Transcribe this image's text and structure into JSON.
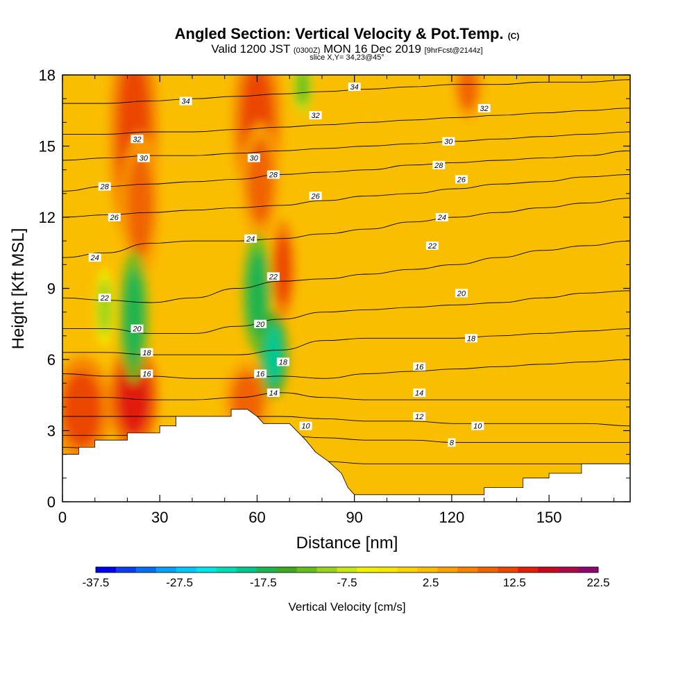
{
  "header": {
    "title_main": "Angled Section: Vertical Velocity & Pot.Temp.",
    "title_unit": "(C)",
    "sub_a": "Valid 1200 JST",
    "sub_b": "(0300Z)",
    "sub_c": "MON 16 Dec 2019",
    "sub_d": "[9hrFcst@2144z]",
    "slice": "slice X,Y= 34,23@45°"
  },
  "chart_data": {
    "type": "heatmap",
    "xlabel": "Distance [nm]",
    "ylabel": "Height [Kft MSL]",
    "xlim": [
      0,
      175
    ],
    "ylim": [
      0,
      18
    ],
    "xticks": [
      0,
      30,
      60,
      90,
      120,
      150
    ],
    "yticks": [
      0,
      3,
      6,
      9,
      12,
      15,
      18
    ],
    "colorbar": {
      "label": "Vertical Velocity [cm/s]",
      "min": -37.5,
      "max": 22.5,
      "step": 2.5,
      "tick_labels": [
        "-37.5",
        "-27.5",
        "-17.5",
        "-7.5",
        "2.5",
        "12.5",
        "22.5"
      ],
      "colors": [
        "#0000ee",
        "#0a3cf0",
        "#0a6ef2",
        "#0aa0f5",
        "#00c8f8",
        "#00e6e6",
        "#00dcb4",
        "#00c88c",
        "#1eb450",
        "#3caa1e",
        "#64be1e",
        "#96d21e",
        "#c8e614",
        "#f0f000",
        "#fae600",
        "#fad200",
        "#fabe00",
        "#faa000",
        "#f58200",
        "#f06400",
        "#eb4600",
        "#e11e0a",
        "#c80a1e",
        "#aa0a46",
        "#8c0a6e"
      ]
    },
    "terrain": [
      [
        0,
        2.0
      ],
      [
        5,
        2.0
      ],
      [
        5,
        2.3
      ],
      [
        10,
        2.3
      ],
      [
        10,
        2.6
      ],
      [
        20,
        2.6
      ],
      [
        20,
        2.9
      ],
      [
        30,
        2.9
      ],
      [
        30,
        3.2
      ],
      [
        35,
        3.2
      ],
      [
        35,
        3.6
      ],
      [
        52,
        3.6
      ],
      [
        52,
        3.9
      ],
      [
        57,
        3.9
      ],
      [
        60,
        3.6
      ],
      [
        62,
        3.3
      ],
      [
        70,
        3.3
      ],
      [
        75,
        2.6
      ],
      [
        78,
        2.1
      ],
      [
        82,
        1.7
      ],
      [
        86,
        1.2
      ],
      [
        88,
        0.6
      ],
      [
        90,
        0.3
      ],
      [
        130,
        0.3
      ],
      [
        130,
        0.6
      ],
      [
        142,
        0.6
      ],
      [
        142,
        1.0
      ],
      [
        150,
        1.0
      ],
      [
        150,
        1.2
      ],
      [
        160,
        1.2
      ],
      [
        160,
        1.6
      ],
      [
        175,
        1.6
      ]
    ],
    "theta_lines": [
      {
        "label": "8",
        "y": [
          2.3,
          2.2,
          2.1,
          2.0,
          1.9,
          1.8,
          1.7,
          1.6,
          1.6,
          1.6,
          1.6,
          1.6,
          1.6,
          1.6
        ]
      },
      {
        "label": "10",
        "y": [
          2.8,
          2.8,
          2.8,
          2.8,
          2.8,
          2.8,
          2.7,
          2.6,
          2.6,
          2.5,
          2.5,
          2.5,
          2.5,
          2.5
        ]
      },
      {
        "label": "12",
        "y": [
          3.6,
          3.6,
          3.6,
          3.6,
          3.6,
          3.6,
          3.5,
          3.4,
          3.4,
          3.3,
          3.3,
          3.3,
          3.3,
          3.2
        ]
      },
      {
        "label": "14",
        "y": [
          4.4,
          4.4,
          4.3,
          4.3,
          4.4,
          4.6,
          4.4,
          4.3,
          4.3,
          4.3,
          4.3,
          4.3,
          4.3,
          4.3
        ]
      },
      {
        "label": "16",
        "y": [
          5.4,
          5.3,
          5.3,
          5.2,
          5.2,
          5.3,
          5.2,
          5.4,
          5.5,
          5.6,
          5.7,
          5.8,
          5.9,
          6.0
        ]
      },
      {
        "label": "18",
        "y": [
          6.3,
          6.3,
          6.2,
          6.2,
          6.2,
          6.4,
          6.8,
          6.9,
          6.9,
          6.9,
          7.0,
          7.1,
          7.2,
          7.3
        ]
      },
      {
        "label": "20",
        "y": [
          7.3,
          7.3,
          7.1,
          7.1,
          7.4,
          7.7,
          8.0,
          8.1,
          8.2,
          8.3,
          8.4,
          8.6,
          8.8,
          8.9
        ]
      },
      {
        "label": "22",
        "y": [
          8.6,
          8.5,
          8.4,
          8.6,
          9.0,
          9.3,
          9.4,
          9.6,
          9.8,
          10.0,
          10.3,
          10.6,
          10.8,
          11.0
        ]
      },
      {
        "label": "24",
        "y": [
          10.3,
          10.5,
          10.9,
          11.0,
          11.0,
          11.1,
          11.3,
          11.5,
          11.8,
          12.0,
          12.2,
          12.4,
          12.6,
          12.8
        ]
      },
      {
        "label": "26",
        "y": [
          12.0,
          12.1,
          12.2,
          12.3,
          12.4,
          12.5,
          12.7,
          12.9,
          13.0,
          13.2,
          13.4,
          13.5,
          13.7,
          13.8
        ]
      },
      {
        "label": "28",
        "y": [
          13.1,
          13.3,
          13.4,
          13.5,
          13.6,
          13.8,
          13.9,
          14.0,
          14.2,
          14.3,
          14.4,
          14.5,
          14.6,
          14.8
        ]
      },
      {
        "label": "30",
        "y": [
          14.4,
          14.5,
          14.6,
          14.6,
          14.7,
          14.8,
          14.9,
          15.0,
          15.1,
          15.2,
          15.3,
          15.4,
          15.5,
          15.6
        ]
      },
      {
        "label": "32",
        "y": [
          15.5,
          15.5,
          15.6,
          15.6,
          15.7,
          15.8,
          15.9,
          16.0,
          16.1,
          16.2,
          16.3,
          16.4,
          16.5,
          16.6
        ]
      },
      {
        "label": "34",
        "y": [
          16.8,
          16.8,
          16.9,
          17.0,
          17.1,
          17.2,
          17.3,
          17.4,
          17.5,
          17.6,
          17.6,
          17.7,
          17.7,
          17.8
        ]
      }
    ],
    "extra_theta_labels": [
      {
        "label": "34",
        "x": 38,
        "y": 16.9
      },
      {
        "label": "32",
        "x": 23,
        "y": 15.3
      },
      {
        "label": "30",
        "x": 25,
        "y": 14.5
      },
      {
        "label": "28",
        "x": 13,
        "y": 13.3
      },
      {
        "label": "26",
        "x": 16,
        "y": 12.0
      },
      {
        "label": "24",
        "x": 10,
        "y": 10.3
      },
      {
        "label": "22",
        "x": 13,
        "y": 8.6
      },
      {
        "label": "20",
        "x": 23,
        "y": 7.3
      },
      {
        "label": "18",
        "x": 26,
        "y": 6.3
      },
      {
        "label": "16",
        "x": 26,
        "y": 5.4
      },
      {
        "label": "30",
        "x": 59,
        "y": 14.5
      },
      {
        "label": "28",
        "x": 65,
        "y": 13.8
      },
      {
        "label": "24",
        "x": 58,
        "y": 11.1
      },
      {
        "label": "22",
        "x": 65,
        "y": 9.5
      },
      {
        "label": "20",
        "x": 61,
        "y": 7.5
      },
      {
        "label": "18",
        "x": 68,
        "y": 5.9
      },
      {
        "label": "16",
        "x": 61,
        "y": 5.4
      },
      {
        "label": "14",
        "x": 65,
        "y": 4.6
      },
      {
        "label": "10",
        "x": 75,
        "y": 3.2
      },
      {
        "label": "34",
        "x": 90,
        "y": 17.5
      },
      {
        "label": "32",
        "x": 78,
        "y": 16.3
      },
      {
        "label": "26",
        "x": 78,
        "y": 12.9
      },
      {
        "label": "16",
        "x": 110,
        "y": 5.7
      },
      {
        "label": "14",
        "x": 110,
        "y": 4.6
      },
      {
        "label": "12",
        "x": 110,
        "y": 3.6
      },
      {
        "label": "8",
        "x": 120,
        "y": 2.5
      },
      {
        "label": "10",
        "x": 128,
        "y": 3.2
      },
      {
        "label": "18",
        "x": 126,
        "y": 6.9
      },
      {
        "label": "20",
        "x": 123,
        "y": 8.8
      },
      {
        "label": "22",
        "x": 114,
        "y": 10.8
      },
      {
        "label": "24",
        "x": 117,
        "y": 12.0
      },
      {
        "label": "26",
        "x": 123,
        "y": 13.6
      },
      {
        "label": "28",
        "x": 116,
        "y": 14.2
      },
      {
        "label": "30",
        "x": 119,
        "y": 15.2
      },
      {
        "label": "32",
        "x": 130,
        "y": 16.6
      }
    ],
    "velocity_features": [
      {
        "kind": "updraft",
        "x": 22,
        "y": 15.5,
        "rx": 5,
        "ry": 3.5,
        "value": 12.5
      },
      {
        "kind": "updraft",
        "x": 24,
        "y": 12.5,
        "rx": 4,
        "ry": 2.2,
        "value": 10
      },
      {
        "kind": "updraft",
        "x": 60,
        "y": 16.0,
        "rx": 5,
        "ry": 2.5,
        "value": 12.5
      },
      {
        "kind": "updraft",
        "x": 61,
        "y": 13.5,
        "rx": 4,
        "ry": 1.8,
        "value": 10
      },
      {
        "kind": "updraft",
        "x": 68,
        "y": 9.8,
        "rx": 2.5,
        "ry": 1.5,
        "value": 12.5
      },
      {
        "kind": "updraft",
        "x": 6,
        "y": 3.9,
        "rx": 6,
        "ry": 1.6,
        "value": 12.5
      },
      {
        "kind": "updraft",
        "x": 22,
        "y": 4.4,
        "rx": 5,
        "ry": 1.6,
        "value": 15
      },
      {
        "kind": "updraft",
        "x": 57,
        "y": 4.3,
        "rx": 5,
        "ry": 1.2,
        "value": 10
      },
      {
        "kind": "updraft",
        "x": 125,
        "y": 17.5,
        "rx": 3,
        "ry": 1.0,
        "value": 10
      },
      {
        "kind": "downdraft",
        "x": 22,
        "y": 7.8,
        "rx": 3,
        "ry": 2.0,
        "value": -17.5
      },
      {
        "kind": "downdraft",
        "x": 13,
        "y": 8.2,
        "rx": 2,
        "ry": 1.2,
        "value": -10
      },
      {
        "kind": "downdraft",
        "x": 60,
        "y": 8.8,
        "rx": 3,
        "ry": 1.8,
        "value": -17.5
      },
      {
        "kind": "downdraft",
        "x": 65,
        "y": 6.2,
        "rx": 3,
        "ry": 1.3,
        "value": -20
      },
      {
        "kind": "downdraft",
        "x": 74,
        "y": 17.5,
        "rx": 2,
        "ry": 0.8,
        "value": -12.5
      }
    ]
  }
}
